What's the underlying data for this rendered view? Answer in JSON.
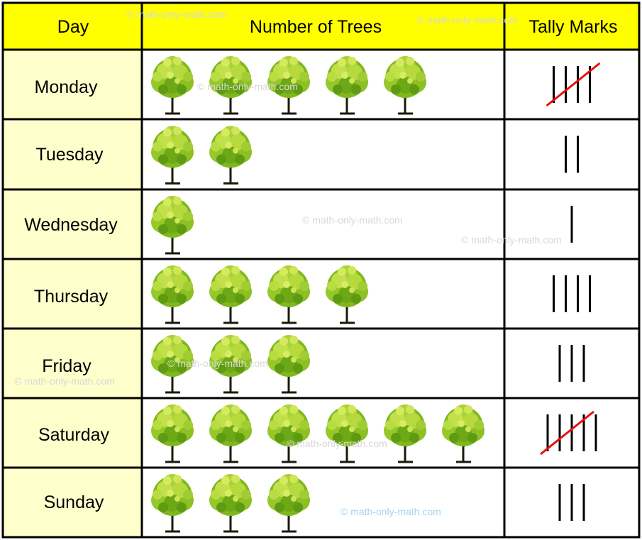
{
  "chart_data": {
    "type": "table",
    "columns": [
      "Day",
      "Number of Trees",
      "Tally Marks"
    ],
    "rows": [
      {
        "day": "Monday",
        "trees": 5
      },
      {
        "day": "Tuesday",
        "trees": 2
      },
      {
        "day": "Wednesday",
        "trees": 1
      },
      {
        "day": "Thursday",
        "trees": 4
      },
      {
        "day": "Friday",
        "trees": 3
      },
      {
        "day": "Saturday",
        "trees": 6
      },
      {
        "day": "Sunday",
        "trees": 3
      }
    ],
    "pictograph_icon": "tree-icon",
    "tally_group_size": 5
  },
  "watermarks": [
    "© math-only-math.com",
    "© math-only-math.com",
    "© math-only-math.com",
    "© math-only-math.com",
    "© math-only-math.com",
    "© math-only-math.com",
    "© math-only-math.com",
    "© math-only-math.com",
    "© math-only-math.com"
  ],
  "colors": {
    "header_bg": "#ffff00",
    "day_cell_bg": "#ffffcc",
    "grid": "#000000",
    "tally": "#000000",
    "tally_strike": "#e8100a",
    "tree_leaf_light": "#c8e23c",
    "tree_leaf_dark": "#5e9a12",
    "tree_trunk": "#1a1a0a",
    "watermark": "#d8d8d8",
    "watermark_blue": "#a8d4f0"
  }
}
